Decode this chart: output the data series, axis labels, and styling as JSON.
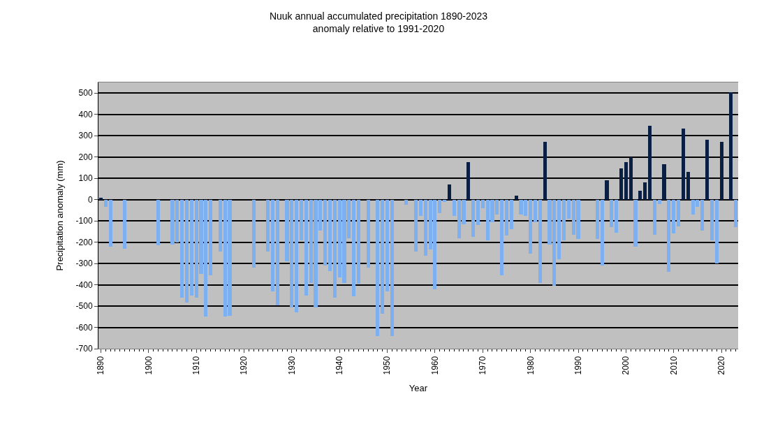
{
  "chart_data": {
    "type": "bar",
    "title": "Nuuk annual accumulated precipitation 1890-2023",
    "subtitle": "anomaly relative to 1991-2020",
    "xlabel": "Year",
    "ylabel": "Precipitation anomaly (mm)",
    "x": [
      1890,
      1891,
      1892,
      1893,
      1894,
      1895,
      1896,
      1897,
      1898,
      1899,
      1900,
      1901,
      1902,
      1903,
      1904,
      1905,
      1906,
      1907,
      1908,
      1909,
      1910,
      1911,
      1912,
      1913,
      1914,
      1915,
      1916,
      1917,
      1918,
      1919,
      1920,
      1921,
      1922,
      1923,
      1924,
      1925,
      1926,
      1927,
      1928,
      1929,
      1930,
      1931,
      1932,
      1933,
      1934,
      1935,
      1936,
      1937,
      1938,
      1939,
      1940,
      1941,
      1942,
      1943,
      1944,
      1945,
      1946,
      1947,
      1948,
      1949,
      1950,
      1951,
      1952,
      1953,
      1954,
      1955,
      1956,
      1957,
      1958,
      1959,
      1960,
      1961,
      1962,
      1963,
      1964,
      1965,
      1966,
      1967,
      1968,
      1969,
      1970,
      1971,
      1972,
      1973,
      1974,
      1975,
      1976,
      1977,
      1978,
      1979,
      1980,
      1981,
      1982,
      1983,
      1984,
      1985,
      1986,
      1987,
      1988,
      1989,
      1990,
      1991,
      1992,
      1993,
      1994,
      1995,
      1996,
      1997,
      1998,
      1999,
      2000,
      2001,
      2002,
      2003,
      2004,
      2005,
      2006,
      2007,
      2008,
      2009,
      2010,
      2011,
      2012,
      2013,
      2014,
      2015,
      2016,
      2017,
      2018,
      2019,
      2020,
      2021,
      2022,
      2023
    ],
    "values": [
      10,
      -35,
      -220,
      null,
      null,
      -230,
      null,
      null,
      null,
      null,
      null,
      null,
      -215,
      null,
      null,
      -210,
      -200,
      -460,
      -485,
      -450,
      -460,
      -350,
      -550,
      -355,
      null,
      -245,
      -550,
      -545,
      null,
      null,
      null,
      null,
      -320,
      null,
      null,
      -245,
      -430,
      -495,
      null,
      -290,
      -505,
      -530,
      -190,
      -450,
      -390,
      -505,
      -145,
      -310,
      -335,
      -460,
      -365,
      -390,
      -180,
      -455,
      -395,
      null,
      -320,
      null,
      -640,
      -535,
      -430,
      -640,
      null,
      null,
      -25,
      null,
      -245,
      -75,
      -265,
      -235,
      -420,
      -65,
      -10,
      70,
      -75,
      -180,
      -115,
      175,
      -175,
      -120,
      -40,
      -190,
      -105,
      -70,
      -355,
      -170,
      -140,
      20,
      -70,
      -75,
      -255,
      -105,
      -390,
      270,
      -210,
      -405,
      -280,
      -190,
      -90,
      -165,
      -185,
      null,
      null,
      null,
      -185,
      -310,
      90,
      -130,
      -155,
      145,
      175,
      200,
      -220,
      40,
      80,
      345,
      -165,
      -20,
      165,
      -340,
      -160,
      -125,
      335,
      130,
      -70,
      -35,
      -145,
      280,
      -190,
      -300,
      270,
      null,
      505,
      -130
    ],
    "colors": [
      "#0a1f44",
      "#7cb0f0",
      "#7cb0f0",
      "#7cb0f0",
      "#7cb0f0",
      "#7cb0f0",
      "#7cb0f0",
      "#7cb0f0",
      "#7cb0f0",
      "#7cb0f0",
      "#7cb0f0",
      "#7cb0f0",
      "#7cb0f0",
      "#7cb0f0",
      "#7cb0f0",
      "#7cb0f0",
      "#7cb0f0",
      "#7cb0f0",
      "#7cb0f0",
      "#7cb0f0",
      "#7cb0f0",
      "#7cb0f0",
      "#7cb0f0",
      "#7cb0f0",
      "#7cb0f0",
      "#7cb0f0",
      "#7cb0f0",
      "#7cb0f0",
      "#7cb0f0",
      "#7cb0f0",
      "#7cb0f0",
      "#7cb0f0",
      "#7cb0f0",
      "#7cb0f0",
      "#7cb0f0",
      "#7cb0f0",
      "#7cb0f0",
      "#7cb0f0",
      "#7cb0f0",
      "#7cb0f0",
      "#7cb0f0",
      "#7cb0f0",
      "#7cb0f0",
      "#7cb0f0",
      "#7cb0f0",
      "#7cb0f0",
      "#7cb0f0",
      "#7cb0f0",
      "#7cb0f0",
      "#7cb0f0",
      "#7cb0f0",
      "#7cb0f0",
      "#7cb0f0",
      "#7cb0f0",
      "#7cb0f0",
      "#7cb0f0",
      "#7cb0f0",
      "#7cb0f0",
      "#7cb0f0",
      "#7cb0f0",
      "#7cb0f0",
      "#7cb0f0",
      "#7cb0f0",
      "#7cb0f0",
      "#7cb0f0",
      "#7cb0f0",
      "#7cb0f0",
      "#7cb0f0",
      "#7cb0f0",
      "#7cb0f0",
      "#7cb0f0",
      "#7cb0f0",
      "#7cb0f0",
      "#0a1f44",
      "#7cb0f0",
      "#7cb0f0",
      "#7cb0f0",
      "#0a1f44",
      "#7cb0f0",
      "#7cb0f0",
      "#7cb0f0",
      "#7cb0f0",
      "#7cb0f0",
      "#7cb0f0",
      "#7cb0f0",
      "#7cb0f0",
      "#7cb0f0",
      "#0a1f44",
      "#7cb0f0",
      "#7cb0f0",
      "#7cb0f0",
      "#7cb0f0",
      "#7cb0f0",
      "#0a1f44",
      "#7cb0f0",
      "#7cb0f0",
      "#7cb0f0",
      "#7cb0f0",
      "#7cb0f0",
      "#7cb0f0",
      "#7cb0f0",
      "#7cb0f0",
      "#7cb0f0",
      "#7cb0f0",
      "#7cb0f0",
      "#7cb0f0",
      "#0a1f44",
      "#7cb0f0",
      "#7cb0f0",
      "#0a1f44",
      "#0a1f44",
      "#0a1f44",
      "#7cb0f0",
      "#0a1f44",
      "#0a1f44",
      "#0a1f44",
      "#7cb0f0",
      "#7cb0f0",
      "#0a1f44",
      "#7cb0f0",
      "#7cb0f0",
      "#7cb0f0",
      "#0a1f44",
      "#0a1f44",
      "#7cb0f0",
      "#7cb0f0",
      "#7cb0f0",
      "#0a1f44",
      "#7cb0f0",
      "#7cb0f0",
      "#0a1f44",
      "#7cb0f0",
      "#0a1f44",
      "#7cb0f0"
    ],
    "xlim": [
      1889.5,
      2023.5
    ],
    "xticks": [
      1890,
      1900,
      1910,
      1920,
      1930,
      1940,
      1950,
      1960,
      1970,
      1980,
      1990,
      2000,
      2010,
      2020
    ],
    "ylim": [
      -700,
      550
    ],
    "yticks": [
      -700,
      -600,
      -500,
      -400,
      -300,
      -200,
      -100,
      0,
      100,
      200,
      300,
      400,
      500
    ],
    "grid": "y"
  }
}
